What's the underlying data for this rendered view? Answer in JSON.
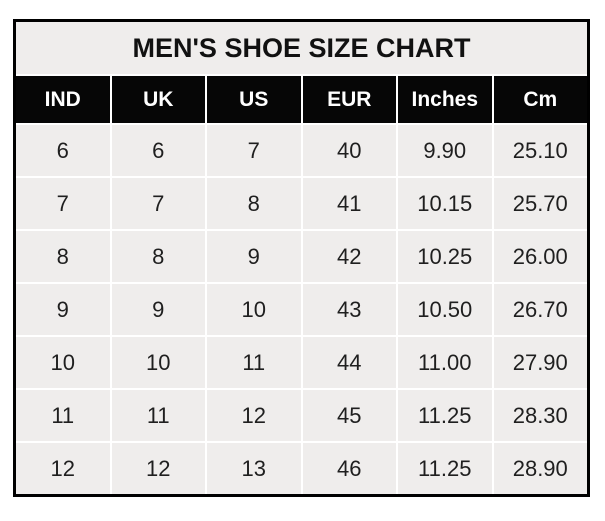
{
  "page": {
    "background": "#ffffff"
  },
  "chart_data": {
    "type": "table",
    "title": "MEN'S SHOE SIZE CHART",
    "columns": [
      "IND",
      "UK",
      "US",
      "EUR",
      "Inches",
      "Cm"
    ],
    "rows": [
      [
        "6",
        "6",
        "7",
        "40",
        "9.90",
        "25.10"
      ],
      [
        "7",
        "7",
        "8",
        "41",
        "10.15",
        "25.70"
      ],
      [
        "8",
        "8",
        "9",
        "42",
        "10.25",
        "26.00"
      ],
      [
        "9",
        "9",
        "10",
        "43",
        "10.50",
        "26.70"
      ],
      [
        "10",
        "10",
        "11",
        "44",
        "11.00",
        "27.90"
      ],
      [
        "11",
        "11",
        "12",
        "45",
        "11.25",
        "28.30"
      ],
      [
        "12",
        "12",
        "13",
        "46",
        "11.25",
        "28.90"
      ]
    ]
  },
  "colors": {
    "table_border": "#000000",
    "header_bg": "#060606",
    "header_text": "#ffffff",
    "title_bg": "#efedec",
    "cell_bg": "#efedec",
    "cell_text": "#1f1f1f",
    "gridline": "#ffffff"
  }
}
